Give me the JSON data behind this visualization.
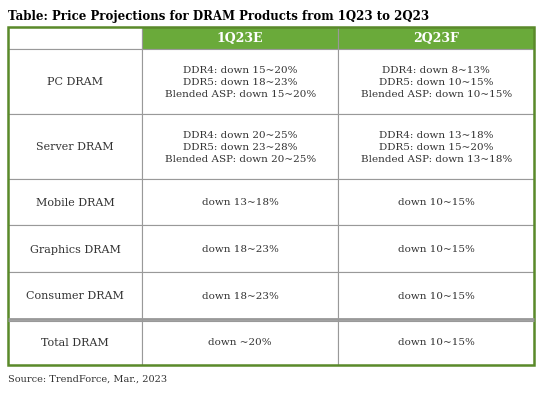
{
  "title": "Table: Price Projections for DRAM Products from 1Q23 to 2Q23",
  "source": "Source: TrendForce, Mar., 2023",
  "header_bg": "#6aaa3a",
  "header_text_color": "#ffffff",
  "header_cols": [
    "1Q23E",
    "2Q23F"
  ],
  "row_labels": [
    "PC DRAM",
    "Server DRAM",
    "Mobile DRAM",
    "Graphics DRAM",
    "Consumer DRAM",
    "Total DRAM"
  ],
  "col1_data": [
    "DDR4: down 15~20%\nDDR5: down 18~23%\nBlended ASP: down 15~20%",
    "DDR4: down 20~25%\nDDR5: down 23~28%\nBlended ASP: down 20~25%",
    "down 13~18%",
    "down 18~23%",
    "down 18~23%",
    "down ~20%"
  ],
  "col2_data": [
    "DDR4: down 8~13%\nDDR5: down 10~15%\nBlended ASP: down 10~15%",
    "DDR4: down 13~18%\nDDR5: down 15~20%\nBlended ASP: down 13~18%",
    "down 10~15%",
    "down 10~15%",
    "down 10~15%",
    "down 10~15%"
  ],
  "table_border_color": "#5a8a2a",
  "cell_border_color": "#999999",
  "bg_color": "#ffffff",
  "text_color": "#333333",
  "title_color": "#000000",
  "title_fontsize": 8.5,
  "header_fontsize": 9.0,
  "cell_fontsize": 7.5,
  "label_fontsize": 8.0,
  "source_fontsize": 7.0,
  "fig_width": 5.42,
  "fig_height": 4.06,
  "dpi": 100
}
